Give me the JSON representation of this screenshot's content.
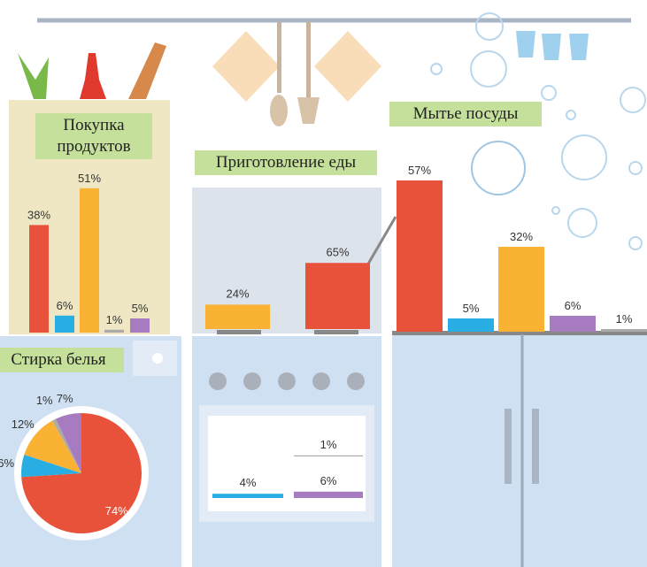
{
  "chart_data": [
    {
      "type": "bar",
      "title": "Покупка продуктов",
      "values": [
        38,
        6,
        51,
        1,
        5
      ],
      "value_labels": [
        "38%",
        "6%",
        "51%",
        "1%",
        "5%"
      ],
      "colors": [
        "#e8523a",
        "#29aee4",
        "#f9b233",
        "#aaaaaa",
        "#a77bc0"
      ]
    },
    {
      "type": "bar",
      "title": "Приготовление еды",
      "values": [
        24,
        65,
        1,
        4,
        6
      ],
      "value_labels": [
        "24%",
        "65%",
        "1%",
        "4%",
        "6%"
      ],
      "colors": [
        "#f9b233",
        "#e8523a",
        "#aaaaaa",
        "#29aee4",
        "#a77bc0"
      ]
    },
    {
      "type": "bar",
      "title": "Мытье посуды",
      "values": [
        57,
        5,
        32,
        6,
        1
      ],
      "value_labels": [
        "57%",
        "5%",
        "32%",
        "6%",
        "1%"
      ],
      "colors": [
        "#e8523a",
        "#29aee4",
        "#f9b233",
        "#a77bc0",
        "#aaaaaa"
      ]
    },
    {
      "type": "pie",
      "title": "Стирка белья",
      "values": [
        74,
        6,
        12,
        1,
        7
      ],
      "value_labels": [
        "74%",
        "6%",
        "12%",
        "1%",
        "7%"
      ],
      "colors": [
        "#e8523a",
        "#29aee4",
        "#f9b233",
        "#aaaaaa",
        "#a77bc0"
      ]
    }
  ]
}
